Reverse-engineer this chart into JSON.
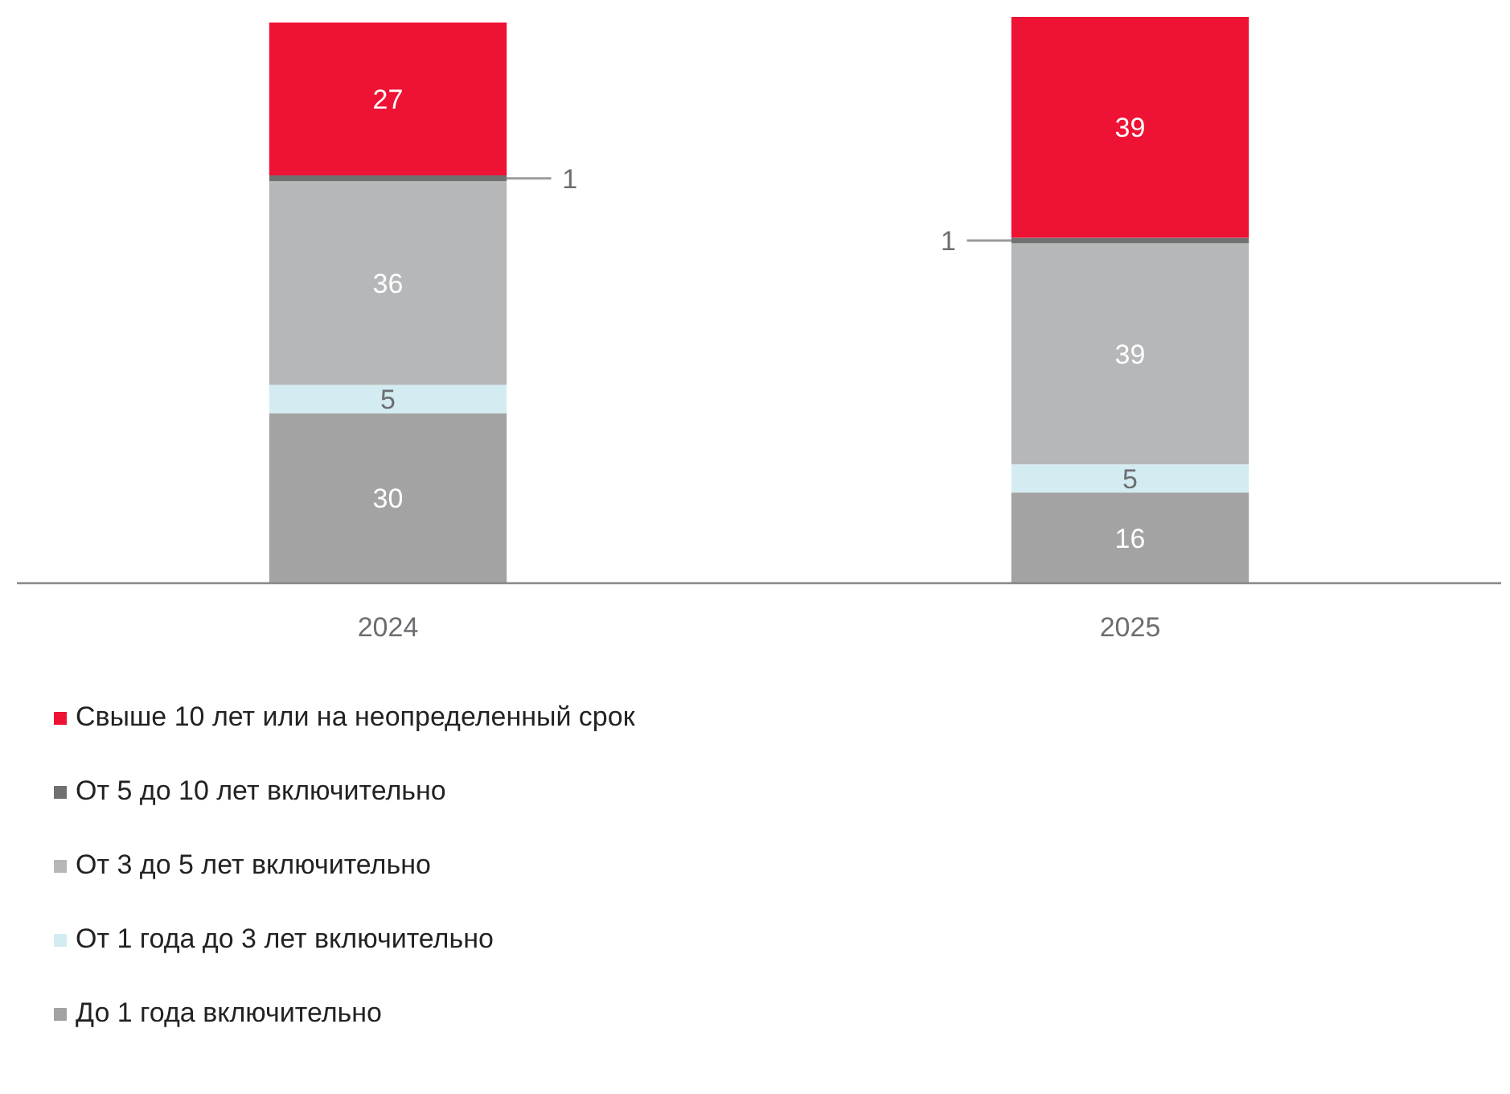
{
  "chart_data": {
    "type": "bar",
    "stacked": true,
    "categories": [
      "2024",
      "2025"
    ],
    "series": [
      {
        "name": "До 1 года включительно",
        "color": "#a3a3a3",
        "values": [
          30,
          16
        ]
      },
      {
        "name": "От 1 года до 3 лет включительно",
        "color": "#d3ecf2",
        "values": [
          5,
          5
        ]
      },
      {
        "name": "От 3 до 5 лет включительно",
        "color": "#b6b7b9",
        "values": [
          36,
          39
        ]
      },
      {
        "name": "От 5 до 10 лет включительно",
        "color": "#6f7170",
        "values": [
          1,
          1
        ]
      },
      {
        "name": "Свыше 10 лет или на неопределенный срок",
        "color": "#ee1235",
        "values": [
          27,
          39
        ]
      }
    ],
    "data_labels": true,
    "legend": "bottom",
    "grid": false,
    "tick_labels": "x"
  }
}
